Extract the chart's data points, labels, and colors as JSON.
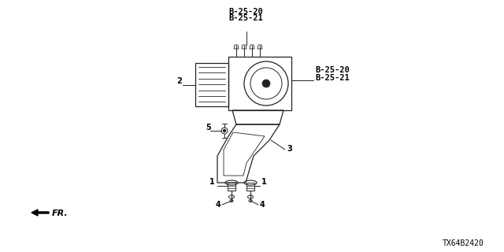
{
  "title": "",
  "background_color": "#ffffff",
  "diagram_id": "TX64B2420",
  "labels": {
    "top_ref1": "B-25-20",
    "top_ref2": "B-25-21",
    "right_ref1": "B-25-20",
    "right_ref2": "B-25-21",
    "part2": "2",
    "part3": "3",
    "part4a": "4",
    "part4b": "4",
    "part1a": "1",
    "part1b": "1",
    "part5": "5",
    "fr_label": "FR."
  },
  "line_color": "#222222",
  "text_color": "#000000",
  "font_size_labels": 7,
  "font_size_ref": 7.5,
  "font_size_id": 7
}
